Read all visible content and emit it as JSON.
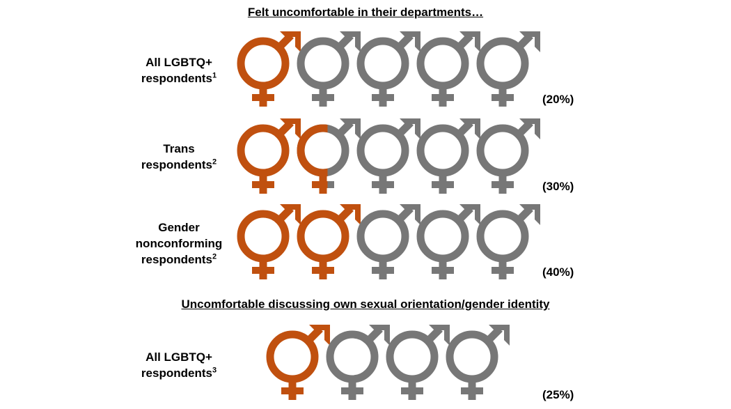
{
  "sections": [
    {
      "title": "Felt uncomfortable in their departments…",
      "rows": [
        {
          "label_lines": [
            "All LGBTQ+",
            "respondents"
          ],
          "footnote": "1",
          "percent_label": "(20%)"
        },
        {
          "label_lines": [
            "Trans",
            "respondents"
          ],
          "footnote": "2",
          "percent_label": "(30%)"
        },
        {
          "label_lines": [
            "Gender",
            "nonconforming",
            "respondents"
          ],
          "footnote": "2",
          "percent_label": "(40%)"
        }
      ]
    },
    {
      "title": "Uncomfortable discussing own sexual orientation/gender identity",
      "rows": [
        {
          "label_lines": [
            "All LGBTQ+",
            "respondents"
          ],
          "footnote": "3",
          "percent_label": "(25%)"
        }
      ]
    }
  ],
  "colors": {
    "highlight": "#c0500f",
    "base": "#777777"
  },
  "icon": "male-female-symbol-icon",
  "chart_data": {
    "type": "pictograph",
    "series": [
      {
        "category": "All LGBTQ+ respondents",
        "group": "Felt uncomfortable in their departments…",
        "value": 0.2,
        "icons": 5
      },
      {
        "category": "Trans respondents",
        "group": "Felt uncomfortable in their departments…",
        "value": 0.3,
        "icons": 5
      },
      {
        "category": "Gender nonconforming respondents",
        "group": "Felt uncomfortable in their departments…",
        "value": 0.4,
        "icons": 5
      },
      {
        "category": "All LGBTQ+ respondents",
        "group": "Uncomfortable discussing own sexual orientation/gender identity",
        "value": 0.25,
        "icons": 4
      }
    ]
  }
}
